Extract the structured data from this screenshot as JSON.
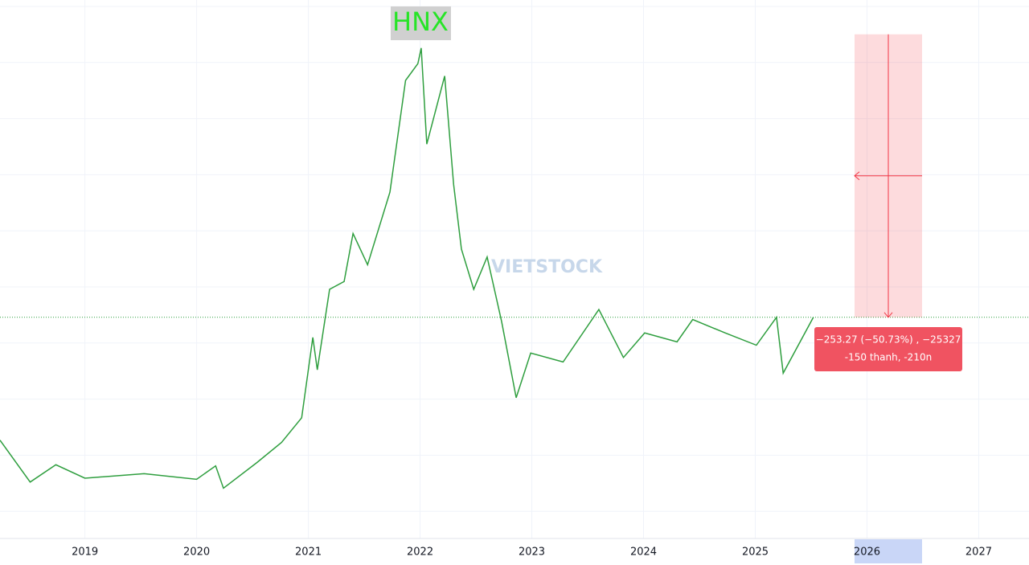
{
  "chart_data": {
    "type": "line",
    "title": "HNX",
    "x": [
      2018.24,
      2018.51,
      2018.74,
      2019.0,
      2019.53,
      2020.0,
      2020.17,
      2020.24,
      2020.54,
      2020.76,
      2020.94,
      2021.04,
      2021.08,
      2021.19,
      2021.32,
      2021.4,
      2021.53,
      2021.73,
      2021.87,
      2021.98,
      2022.01,
      2022.06,
      2022.22,
      2022.3,
      2022.37,
      2022.48,
      2022.6,
      2022.73,
      2022.86,
      2022.99,
      2023.28,
      2023.6,
      2023.82,
      2024.01,
      2024.3,
      2024.44,
      2024.73,
      2025.01,
      2025.19,
      2025.25,
      2025.52
    ],
    "series": [
      {
        "name": "HNX",
        "color": "#2e9e3e",
        "values": [
          136,
          98.5,
          114,
          102,
          106,
          101,
          113,
          93,
          116,
          134,
          156,
          228,
          199,
          271,
          278,
          321,
          293,
          358,
          458,
          473,
          487,
          401,
          462,
          365,
          307,
          271,
          300,
          242,
          174,
          214,
          206,
          253,
          210,
          232,
          224,
          244,
          232,
          221,
          246,
          196,
          246
        ]
      }
    ],
    "xlim": [
      2018.24,
      2027.45
    ],
    "xticks": [
      2019,
      2020,
      2021,
      2022,
      2023,
      2024,
      2025,
      2026,
      2027
    ],
    "ylim": [
      48,
      530
    ],
    "measure": {
      "change": -253.27,
      "line1": "−253.27 (−50.73%) , −25327",
      "line2": "-150 thanh, -210n"
    }
  }
}
